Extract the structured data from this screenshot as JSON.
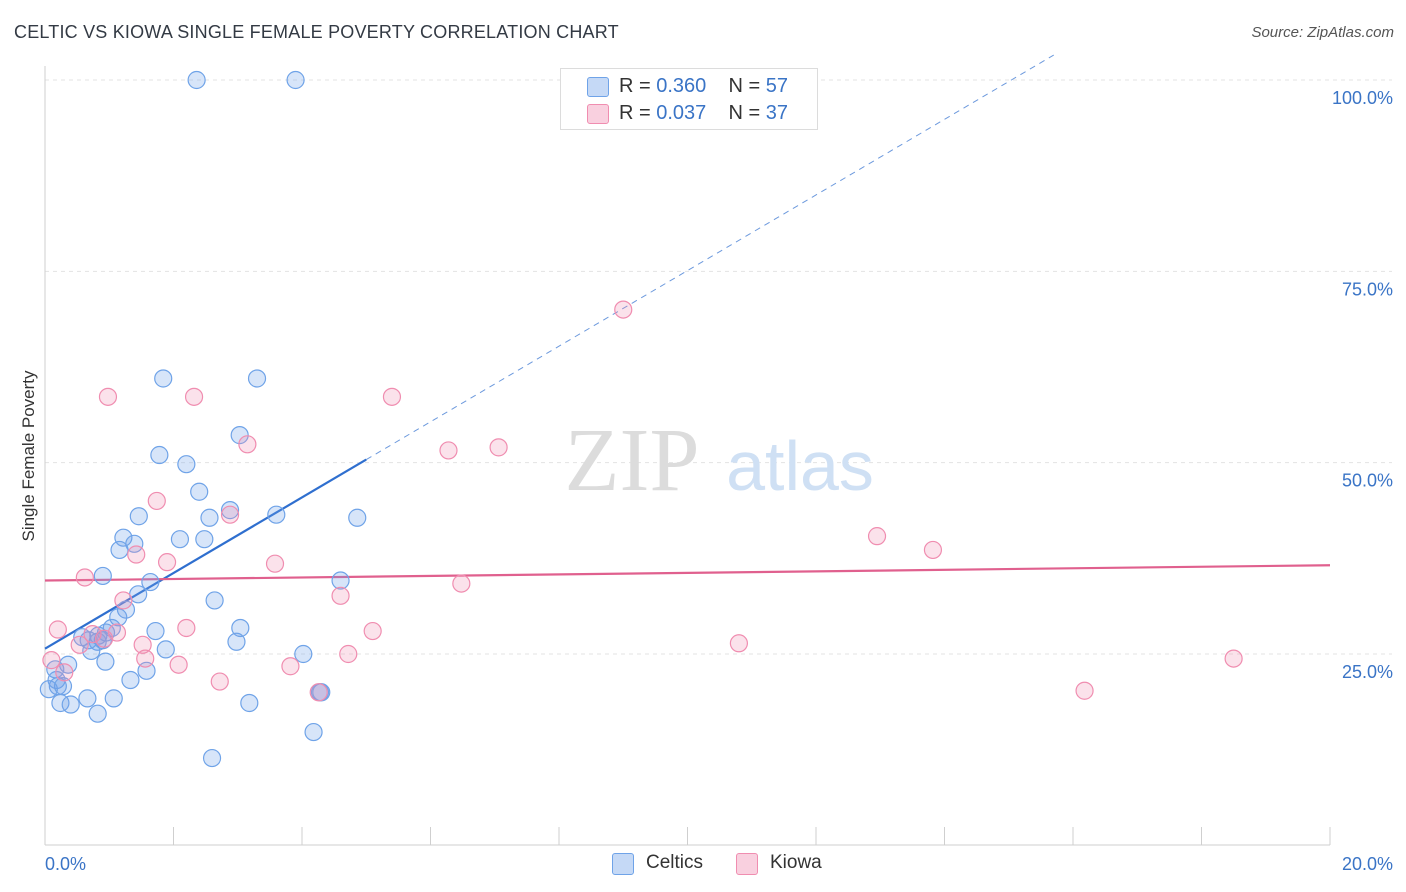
{
  "title": "CELTIC VS KIOWA SINGLE FEMALE POVERTY CORRELATION CHART",
  "source": "Source: ZipAtlas.com",
  "watermark": {
    "zip": "ZIP",
    "atlas": "atlas"
  },
  "legend": {
    "rows": [
      {
        "r_label": "R = ",
        "r_value": "0.360",
        "n_label": "N = ",
        "n_value": "57",
        "color": "#6fa3e8"
      },
      {
        "r_label": "R = ",
        "r_value": "0.037",
        "n_label": "N = ",
        "n_value": "37",
        "color": "#f08db0"
      }
    ]
  },
  "bottom_legend": [
    {
      "label": "Celtics",
      "color": "#6fa3e8"
    },
    {
      "label": "Kiowa",
      "color": "#f08db0"
    }
  ],
  "chart_data": {
    "type": "scatter",
    "title": "CELTIC VS KIOWA SINGLE FEMALE POVERTY CORRELATION CHART",
    "ylabel": "Single Female Poverty",
    "xlabel": "",
    "xlim": [
      0,
      20
    ],
    "ylim": [
      0,
      100
    ],
    "x_tick_labels": [
      "0.0%",
      "20.0%"
    ],
    "y_ticks": [
      25,
      50,
      75,
      100
    ],
    "y_tick_labels": [
      "25.0%",
      "50.0%",
      "75.0%",
      "100.0%"
    ],
    "grid": true,
    "series": [
      {
        "name": "Celtics",
        "color": "#6fa3e8",
        "line_color": "#2f6fcf",
        "trend": {
          "x0": 0,
          "y0": 25.7,
          "x1": 5,
          "y1": 50.4,
          "dash_to_x": 15.7
        },
        "points": [
          [
            2.36,
            100
          ],
          [
            3.9,
            100
          ],
          [
            1.84,
            61
          ],
          [
            3.3,
            61
          ],
          [
            3.03,
            53.6
          ],
          [
            1.78,
            51
          ],
          [
            2.2,
            49.8
          ],
          [
            2.4,
            46.2
          ],
          [
            2.88,
            43.8
          ],
          [
            1.46,
            43
          ],
          [
            2.56,
            42.8
          ],
          [
            3.6,
            43.2
          ],
          [
            4.86,
            42.8
          ],
          [
            1.22,
            40.2
          ],
          [
            2.1,
            40
          ],
          [
            2.48,
            40
          ],
          [
            1.39,
            39.4
          ],
          [
            1.16,
            38.6
          ],
          [
            1.64,
            34.4
          ],
          [
            4.6,
            34.6
          ],
          [
            0.9,
            35.2
          ],
          [
            1.45,
            32.8
          ],
          [
            2.64,
            32
          ],
          [
            1.26,
            30.8
          ],
          [
            1.14,
            29.8
          ],
          [
            1.04,
            28.4
          ],
          [
            1.72,
            28
          ],
          [
            3.04,
            28.4
          ],
          [
            0.95,
            27.8
          ],
          [
            0.83,
            27.4
          ],
          [
            0.9,
            26.8
          ],
          [
            0.82,
            26.6
          ],
          [
            0.58,
            27.2
          ],
          [
            0.68,
            26.8
          ],
          [
            2.98,
            26.6
          ],
          [
            1.88,
            25.6
          ],
          [
            0.72,
            25.4
          ],
          [
            4.02,
            25
          ],
          [
            0.94,
            24
          ],
          [
            0.36,
            23.6
          ],
          [
            0.16,
            23
          ],
          [
            1.58,
            22.8
          ],
          [
            0.18,
            21.6
          ],
          [
            0.2,
            20.8
          ],
          [
            0.28,
            20.8
          ],
          [
            0.06,
            20.4
          ],
          [
            1.33,
            21.6
          ],
          [
            4.28,
            20
          ],
          [
            0.66,
            19.2
          ],
          [
            1.07,
            19.2
          ],
          [
            0.24,
            18.6
          ],
          [
            3.18,
            18.6
          ],
          [
            0.4,
            18.4
          ],
          [
            0.82,
            17.2
          ],
          [
            4.18,
            14.8
          ],
          [
            2.6,
            11.4
          ],
          [
            4.3,
            20
          ]
        ]
      },
      {
        "name": "Kiowa",
        "color": "#f08db0",
        "line_color": "#e0608e",
        "trend": {
          "x0": 0,
          "y0": 34.6,
          "x1": 20,
          "y1": 36.6
        },
        "points": [
          [
            9.0,
            70
          ],
          [
            0.98,
            58.6
          ],
          [
            2.32,
            58.6
          ],
          [
            5.4,
            58.6
          ],
          [
            3.15,
            52.4
          ],
          [
            7.06,
            52
          ],
          [
            6.28,
            51.6
          ],
          [
            1.74,
            45
          ],
          [
            2.88,
            43.2
          ],
          [
            12.95,
            40.4
          ],
          [
            13.82,
            38.6
          ],
          [
            1.42,
            38
          ],
          [
            1.9,
            37
          ],
          [
            3.58,
            36.8
          ],
          [
            0.62,
            35
          ],
          [
            6.48,
            34.2
          ],
          [
            4.6,
            32.6
          ],
          [
            1.22,
            32
          ],
          [
            0.74,
            27.6
          ],
          [
            0.2,
            28.2
          ],
          [
            1.12,
            27.8
          ],
          [
            2.2,
            28.4
          ],
          [
            0.92,
            27
          ],
          [
            1.52,
            26.2
          ],
          [
            5.1,
            28
          ],
          [
            0.54,
            26.2
          ],
          [
            10.8,
            26.4
          ],
          [
            4.72,
            25
          ],
          [
            1.56,
            24.4
          ],
          [
            2.08,
            23.6
          ],
          [
            3.82,
            23.4
          ],
          [
            18.5,
            24.4
          ],
          [
            0.1,
            24.2
          ],
          [
            2.72,
            21.4
          ],
          [
            16.18,
            20.2
          ],
          [
            4.26,
            20
          ],
          [
            0.3,
            22.6
          ]
        ]
      }
    ]
  }
}
